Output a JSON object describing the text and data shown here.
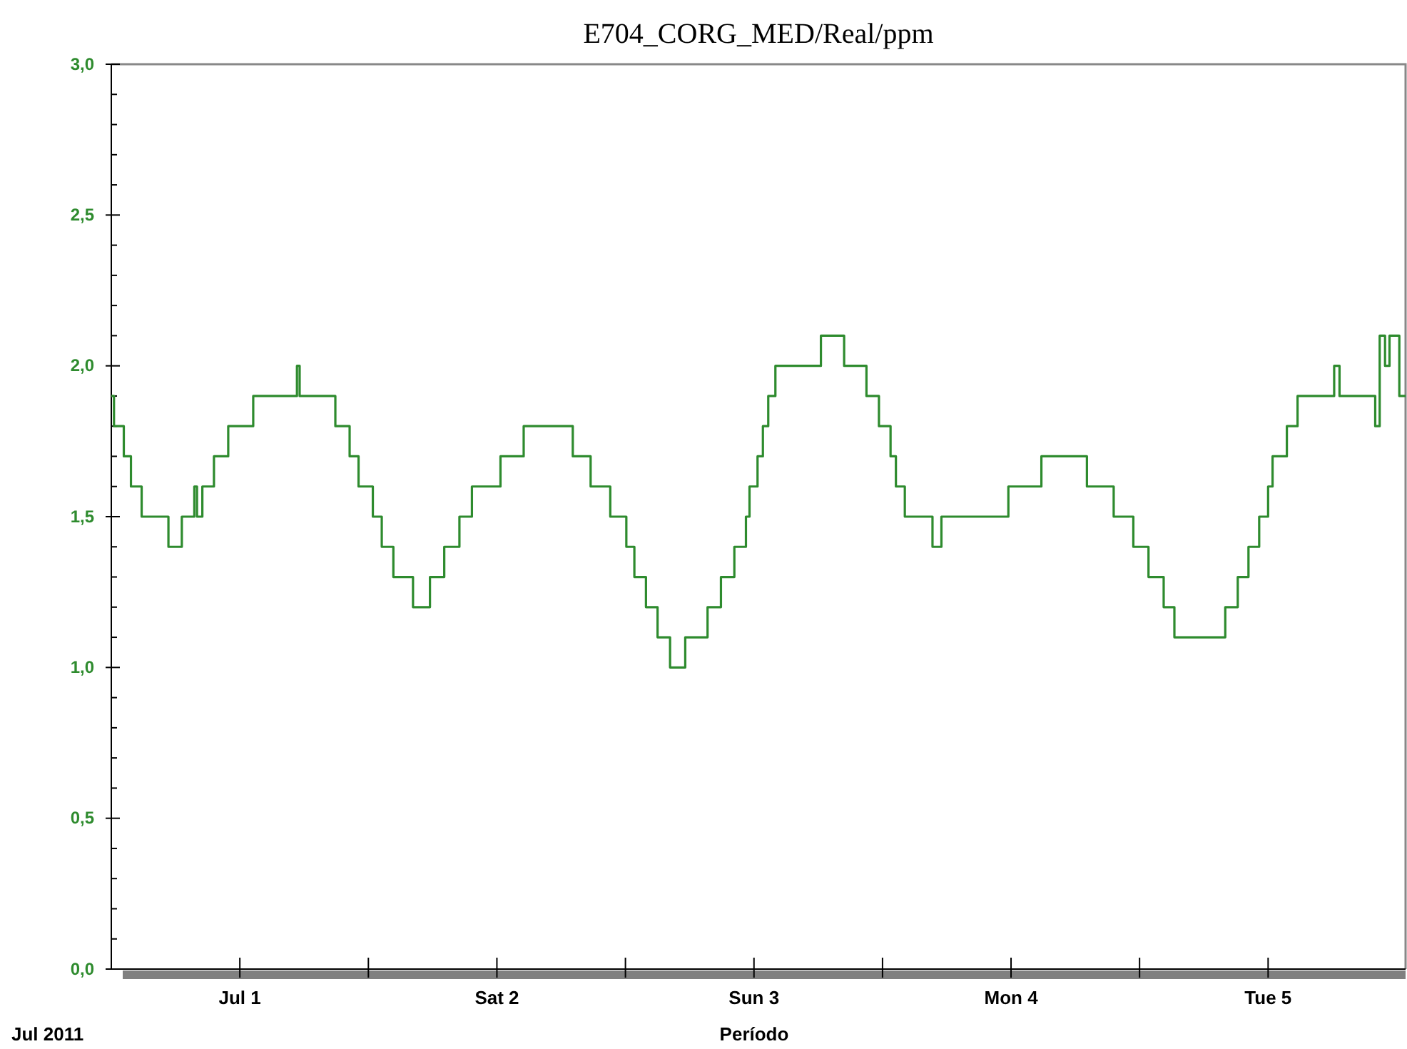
{
  "chart_data": {
    "type": "step",
    "title": "E704_CORG_MED/Real/ppm",
    "xlabel": "Período",
    "annotations": [
      "Jul 2011"
    ],
    "x": [
      "2011-06-30T12:00",
      "2011-06-30T12:15",
      "2011-06-30T13:10",
      "2011-06-30T13:50",
      "2011-06-30T14:50",
      "2011-06-30T17:20",
      "2011-06-30T18:35",
      "2011-06-30T19:45",
      "2011-06-30T20:00",
      "2011-06-30T20:30",
      "2011-06-30T21:35",
      "2011-06-30T22:55",
      "2011-07-01T01:15",
      "2011-07-01T05:20",
      "2011-07-01T05:35",
      "2011-07-01T08:55",
      "2011-07-01T10:15",
      "2011-07-01T11:05",
      "2011-07-01T12:25",
      "2011-07-01T13:15",
      "2011-07-01T14:20",
      "2011-07-01T16:10",
      "2011-07-01T17:45",
      "2011-07-01T19:05",
      "2011-07-01T20:30",
      "2011-07-01T21:40",
      "2011-07-02T00:20",
      "2011-07-02T02:30",
      "2011-07-02T07:05",
      "2011-07-02T08:45",
      "2011-07-02T10:35",
      "2011-07-02T12:05",
      "2011-07-02T12:50",
      "2011-07-02T13:55",
      "2011-07-02T15:00",
      "2011-07-02T16:10",
      "2011-07-02T17:35",
      "2011-07-02T19:40",
      "2011-07-02T20:55",
      "2011-07-02T22:10",
      "2011-07-02T23:15",
      "2011-07-02T23:35",
      "2011-07-03T00:20",
      "2011-07-03T00:50",
      "2011-07-03T01:20",
      "2011-07-03T02:00",
      "2011-07-03T06:15",
      "2011-07-03T08:25",
      "2011-07-03T10:30",
      "2011-07-03T11:40",
      "2011-07-03T12:45",
      "2011-07-03T13:15",
      "2011-07-03T14:05",
      "2011-07-03T16:40",
      "2011-07-03T17:30",
      "2011-07-03T23:45",
      "2011-07-04T02:50",
      "2011-07-04T07:05",
      "2011-07-04T09:35",
      "2011-07-04T11:25",
      "2011-07-04T12:50",
      "2011-07-04T14:15",
      "2011-07-04T15:15",
      "2011-07-04T20:00",
      "2011-07-04T21:10",
      "2011-07-04T22:10",
      "2011-07-04T23:10",
      "2011-07-05T00:00",
      "2011-07-05T00:25",
      "2011-07-05T01:45",
      "2011-07-05T02:45",
      "2011-07-05T06:10",
      "2011-07-05T06:40",
      "2011-07-05T10:00",
      "2011-07-05T10:25",
      "2011-07-05T10:55",
      "2011-07-05T11:20",
      "2011-07-05T12:15",
      "2011-07-05T12:50"
    ],
    "series": [
      {
        "color": "#2e8b2e",
        "values": [
          1.9,
          1.8,
          1.7,
          1.6,
          1.5,
          1.4,
          1.5,
          1.6,
          1.5,
          1.6,
          1.7,
          1.8,
          1.9,
          2.0,
          1.9,
          1.8,
          1.7,
          1.6,
          1.5,
          1.4,
          1.3,
          1.2,
          1.3,
          1.4,
          1.5,
          1.6,
          1.7,
          1.8,
          1.7,
          1.6,
          1.5,
          1.4,
          1.3,
          1.2,
          1.1,
          1.0,
          1.1,
          1.2,
          1.3,
          1.4,
          1.5,
          1.6,
          1.7,
          1.8,
          1.9,
          2.0,
          2.1,
          2.0,
          1.9,
          1.8,
          1.7,
          1.6,
          1.5,
          1.4,
          1.5,
          1.6,
          1.7,
          1.6,
          1.5,
          1.4,
          1.3,
          1.2,
          1.1,
          1.2,
          1.3,
          1.4,
          1.5,
          1.6,
          1.7,
          1.8,
          1.9,
          2.0,
          1.9,
          1.8,
          2.1,
          2.0,
          2.1,
          1.9,
          1.9
        ]
      }
    ],
    "xlim": [
      "2011-06-30T12:00",
      "2011-07-05T12:50"
    ],
    "xticks": [
      {
        "value": "2011-07-01T00:00",
        "label": "Jul 1"
      },
      {
        "value": "2011-07-01T12:00",
        "label": null
      },
      {
        "value": "2011-07-02T00:00",
        "label": "Sat 2"
      },
      {
        "value": "2011-07-02T12:00",
        "label": null
      },
      {
        "value": "2011-07-03T00:00",
        "label": "Sun 3"
      },
      {
        "value": "2011-07-03T12:00",
        "label": null
      },
      {
        "value": "2011-07-04T00:00",
        "label": "Mon 4"
      },
      {
        "value": "2011-07-04T12:00",
        "label": null
      },
      {
        "value": "2011-07-05T00:00",
        "label": "Tue 5"
      }
    ],
    "ylim": [
      0,
      3
    ],
    "yticks": [
      {
        "value": 0,
        "label": "0,0"
      },
      {
        "value": 0.1,
        "label": null
      },
      {
        "value": 0.2,
        "label": null
      },
      {
        "value": 0.3,
        "label": null
      },
      {
        "value": 0.4,
        "label": null
      },
      {
        "value": 0.5,
        "label": "0,5"
      },
      {
        "value": 0.6,
        "label": null
      },
      {
        "value": 0.7,
        "label": null
      },
      {
        "value": 0.8,
        "label": null
      },
      {
        "value": 0.9,
        "label": null
      },
      {
        "value": 1,
        "label": "1,0"
      },
      {
        "value": 1.1,
        "label": null
      },
      {
        "value": 1.2,
        "label": null
      },
      {
        "value": 1.3,
        "label": null
      },
      {
        "value": 1.4,
        "label": null
      },
      {
        "value": 1.5,
        "label": "1,5"
      },
      {
        "value": 1.6,
        "label": null
      },
      {
        "value": 1.7,
        "label": null
      },
      {
        "value": 1.8,
        "label": null
      },
      {
        "value": 1.9,
        "label": null
      },
      {
        "value": 2,
        "label": "2,0"
      },
      {
        "value": 2.1,
        "label": null
      },
      {
        "value": 2.2,
        "label": null
      },
      {
        "value": 2.3,
        "label": null
      },
      {
        "value": 2.4,
        "label": null
      },
      {
        "value": 2.5,
        "label": "2,5"
      },
      {
        "value": 2.6,
        "label": null
      },
      {
        "value": 2.7,
        "label": null
      },
      {
        "value": 2.8,
        "label": null
      },
      {
        "value": 2.9,
        "label": null
      },
      {
        "value": 3,
        "label": "3,0"
      }
    ]
  }
}
